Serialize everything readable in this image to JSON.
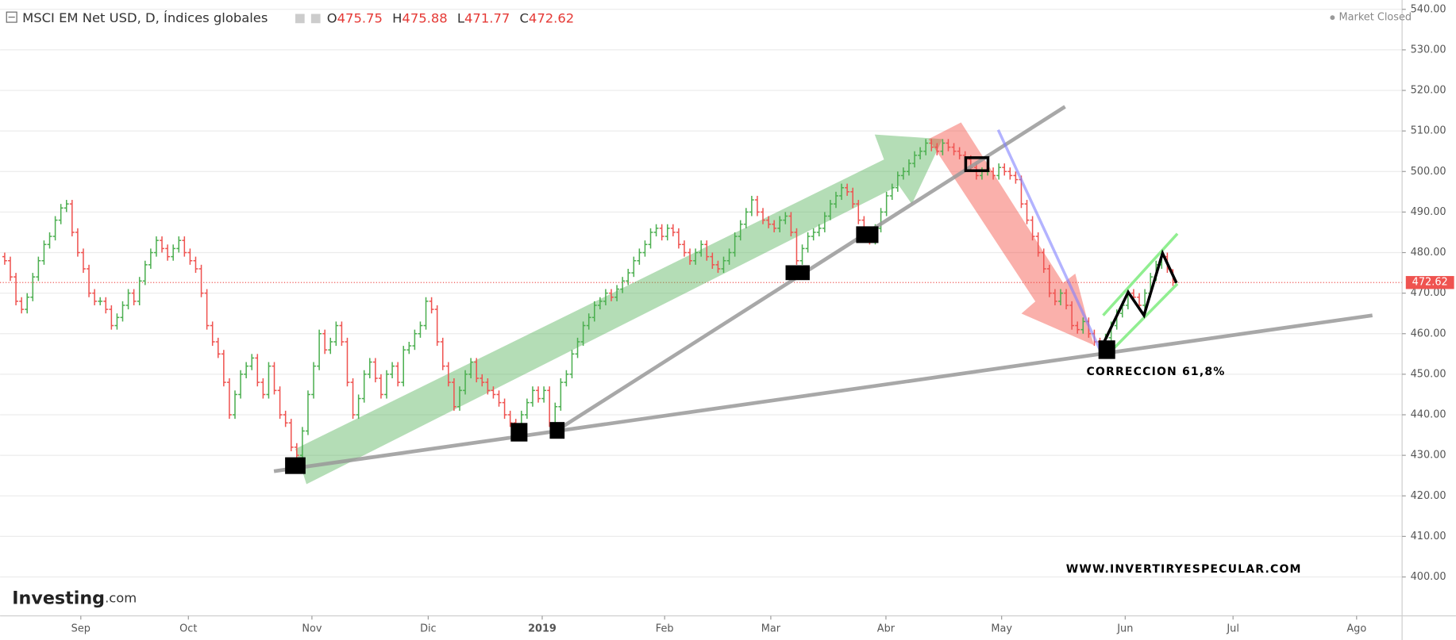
{
  "chart_data": {
    "type": "ohlc",
    "title": "MSCI EM Net USD, D, Índices globales",
    "status": "Market Closed",
    "header_labels": {
      "open": "O",
      "high": "H",
      "low": "L",
      "close": "C"
    },
    "logo": {
      "brand": "Investing",
      "suffix": ".com"
    },
    "annotations": [
      "CORRECCION 61,8%",
      "WWW.INVERTIRYESPECULAR.COM"
    ],
    "up_color": "#4caf50",
    "down_color": "#ef5350",
    "last_price_line": true,
    "grid": true,
    "open": [
      479,
      478,
      474,
      468,
      466,
      469,
      474,
      478,
      482,
      484,
      488,
      491,
      492,
      485,
      480,
      476,
      470,
      468,
      468,
      466,
      462,
      464,
      467,
      470,
      468,
      473,
      477,
      480,
      483,
      481,
      479,
      481,
      483,
      480,
      478,
      476,
      470,
      462,
      458,
      455,
      448,
      440,
      445,
      450,
      452,
      454,
      448,
      445,
      452,
      446,
      440,
      438,
      432,
      430,
      436,
      445,
      452,
      460,
      456,
      458,
      462,
      458,
      448,
      440,
      444,
      450,
      453,
      449,
      445,
      450,
      452,
      448,
      456,
      457,
      460,
      462,
      468,
      466,
      458,
      452,
      448,
      442,
      446,
      450,
      453,
      449,
      448,
      446,
      445,
      443,
      440,
      438,
      437,
      440,
      443,
      446,
      444,
      446,
      438,
      442,
      448,
      450,
      455,
      458,
      462,
      464,
      467,
      468,
      470,
      469,
      471,
      473,
      475,
      478,
      480,
      482,
      485,
      486,
      484,
      486,
      485,
      482,
      480,
      478,
      480,
      482,
      479,
      477,
      476,
      478,
      480,
      484,
      487,
      490,
      493,
      490,
      488,
      487,
      486,
      488,
      489,
      485,
      478,
      481,
      484,
      485,
      486,
      489,
      492,
      494,
      496,
      495,
      492,
      488,
      484,
      483,
      486,
      490,
      494,
      496,
      499,
      500,
      502,
      504,
      505,
      507,
      506,
      505,
      507,
      506,
      505,
      504,
      503,
      501,
      499,
      500,
      500,
      499,
      501,
      500,
      499,
      498,
      492,
      488,
      484,
      480,
      476,
      470,
      468,
      470,
      467,
      462,
      461,
      463,
      460,
      458,
      457,
      459,
      462,
      465,
      467,
      470,
      469,
      467,
      470,
      474,
      477,
      479,
      475.75
    ],
    "high": [
      480,
      479,
      475,
      469,
      470,
      475,
      479,
      483,
      485,
      489,
      492,
      493,
      493,
      486,
      481,
      477,
      471,
      469,
      469,
      467,
      465,
      468,
      471,
      471,
      474,
      478,
      481,
      484,
      484,
      482,
      482,
      484,
      484,
      481,
      479,
      477,
      471,
      463,
      459,
      456,
      449,
      446,
      451,
      453,
      455,
      455,
      449,
      453,
      453,
      447,
      441,
      439,
      433,
      437,
      446,
      453,
      461,
      461,
      459,
      463,
      463,
      459,
      449,
      445,
      451,
      454,
      454,
      450,
      451,
      453,
      453,
      457,
      458,
      461,
      463,
      469,
      469,
      467,
      459,
      453,
      449,
      447,
      451,
      454,
      454,
      450,
      449,
      447,
      446,
      444,
      441,
      439,
      441,
      444,
      447,
      447,
      447,
      447,
      443,
      449,
      451,
      456,
      459,
      463,
      465,
      468,
      469,
      471,
      471,
      472,
      474,
      476,
      479,
      481,
      483,
      486,
      487,
      487,
      487,
      487,
      486,
      483,
      481,
      481,
      483,
      483,
      480,
      478,
      479,
      481,
      485,
      488,
      491,
      494,
      494,
      491,
      489,
      488,
      489,
      490,
      490,
      486,
      482,
      485,
      486,
      487,
      490,
      493,
      495,
      497,
      497,
      496,
      493,
      489,
      485,
      487,
      491,
      495,
      497,
      500,
      501,
      503,
      505,
      506,
      508,
      508,
      507,
      508,
      508,
      507,
      506,
      505,
      504,
      502,
      501,
      501,
      501,
      502,
      502,
      501,
      500,
      499,
      493,
      489,
      485,
      481,
      477,
      471,
      471,
      471,
      468,
      463,
      464,
      464,
      461,
      459,
      460,
      463,
      466,
      468,
      471,
      471,
      470,
      471,
      475,
      478,
      480,
      480,
      475.88
    ],
    "low": [
      477,
      473,
      467,
      465,
      465,
      468,
      473,
      477,
      481,
      483,
      487,
      490,
      484,
      479,
      475,
      469,
      467,
      467,
      465,
      461,
      461,
      463,
      466,
      467,
      467,
      472,
      476,
      479,
      480,
      478,
      478,
      480,
      479,
      477,
      475,
      469,
      461,
      457,
      454,
      447,
      439,
      439,
      444,
      449,
      451,
      447,
      444,
      444,
      445,
      439,
      437,
      431,
      429,
      429,
      435,
      444,
      451,
      455,
      455,
      457,
      457,
      447,
      439,
      439,
      443,
      449,
      448,
      444,
      444,
      449,
      447,
      447,
      455,
      456,
      459,
      461,
      465,
      457,
      451,
      447,
      441,
      441,
      445,
      449,
      448,
      447,
      445,
      444,
      442,
      439,
      437,
      436,
      436,
      439,
      442,
      443,
      443,
      437,
      437,
      441,
      447,
      449,
      454,
      457,
      461,
      463,
      466,
      467,
      468,
      468,
      470,
      472,
      474,
      477,
      479,
      481,
      484,
      483,
      483,
      484,
      481,
      479,
      477,
      477,
      479,
      478,
      476,
      475,
      475,
      477,
      479,
      483,
      486,
      489,
      489,
      487,
      486,
      485,
      485,
      487,
      484,
      477,
      477,
      480,
      483,
      484,
      485,
      488,
      491,
      493,
      494,
      491,
      487,
      483,
      482,
      482,
      485,
      489,
      493,
      495,
      498,
      499,
      501,
      503,
      504,
      505,
      504,
      504,
      505,
      504,
      503,
      502,
      500,
      498,
      498,
      499,
      498,
      498,
      499,
      498,
      497,
      491,
      487,
      483,
      479,
      475,
      469,
      467,
      467,
      466,
      461,
      460,
      460,
      459,
      457,
      456,
      456,
      458,
      461,
      464,
      466,
      468,
      466,
      466,
      469,
      473,
      476,
      475,
      471.77
    ],
    "close": [
      478,
      474,
      468,
      466,
      469,
      474,
      478,
      482,
      484,
      488,
      491,
      492,
      485,
      480,
      476,
      470,
      468,
      468,
      466,
      462,
      464,
      467,
      470,
      468,
      473,
      477,
      480,
      483,
      481,
      479,
      481,
      483,
      480,
      478,
      476,
      470,
      462,
      458,
      455,
      448,
      440,
      445,
      450,
      452,
      454,
      448,
      445,
      452,
      446,
      440,
      438,
      432,
      430,
      436,
      445,
      452,
      460,
      456,
      458,
      462,
      458,
      448,
      440,
      444,
      450,
      453,
      449,
      445,
      450,
      452,
      448,
      456,
      457,
      460,
      462,
      468,
      466,
      458,
      452,
      448,
      442,
      446,
      450,
      453,
      449,
      448,
      446,
      445,
      443,
      440,
      438,
      437,
      440,
      443,
      446,
      444,
      446,
      438,
      442,
      448,
      450,
      455,
      458,
      462,
      464,
      467,
      468,
      470,
      469,
      471,
      473,
      475,
      478,
      480,
      482,
      485,
      486,
      484,
      486,
      485,
      482,
      480,
      478,
      480,
      482,
      479,
      477,
      476,
      478,
      480,
      484,
      487,
      490,
      493,
      490,
      488,
      487,
      486,
      488,
      489,
      485,
      478,
      481,
      484,
      485,
      486,
      489,
      492,
      494,
      496,
      495,
      492,
      488,
      484,
      483,
      486,
      490,
      494,
      496,
      499,
      500,
      502,
      504,
      505,
      507,
      506,
      505,
      507,
      506,
      505,
      504,
      503,
      501,
      499,
      500,
      500,
      499,
      501,
      500,
      499,
      498,
      492,
      488,
      484,
      480,
      476,
      470,
      468,
      470,
      467,
      462,
      461,
      463,
      460,
      458,
      457,
      459,
      462,
      465,
      467,
      470,
      469,
      467,
      470,
      474,
      477,
      479,
      476,
      472.62
    ],
    "xlim": [
      -0.83,
      248.8
    ],
    "xticks": [
      {
        "value": 13.55,
        "label": "Sep"
      },
      {
        "value": 32.7,
        "label": "Oct"
      },
      {
        "value": 54.7,
        "label": "Nov"
      },
      {
        "value": 75.4,
        "label": "Dic"
      },
      {
        "value": 95.7,
        "label": "2019"
      },
      {
        "value": 117.5,
        "label": "Feb"
      },
      {
        "value": 136.4,
        "label": "Mar"
      },
      {
        "value": 156.9,
        "label": "Abr"
      },
      {
        "value": 177.5,
        "label": "May"
      },
      {
        "value": 199.5,
        "label": "Jun"
      },
      {
        "value": 218.7,
        "label": "Jul"
      },
      {
        "value": 240.7,
        "label": "Ago"
      }
    ],
    "ylim": [
      390.4,
      542.3
    ],
    "yticks": [
      {
        "value": 400,
        "label": "400.00"
      },
      {
        "value": 410,
        "label": "410.00"
      },
      {
        "value": 420,
        "label": "420.00"
      },
      {
        "value": 430,
        "label": "430.00"
      },
      {
        "value": 440,
        "label": "440.00"
      },
      {
        "value": 450,
        "label": "450.00"
      },
      {
        "value": 460,
        "label": "460.00"
      },
      {
        "value": 470,
        "label": "470.00"
      },
      {
        "value": 480,
        "label": "480.00"
      },
      {
        "value": 490,
        "label": "490.00"
      },
      {
        "value": 500,
        "label": "500.00"
      },
      {
        "value": 510,
        "label": "510.00"
      },
      {
        "value": 520,
        "label": "520.00"
      },
      {
        "value": 530,
        "label": "530.00"
      },
      {
        "value": 540,
        "label": "540.00"
      }
    ]
  }
}
